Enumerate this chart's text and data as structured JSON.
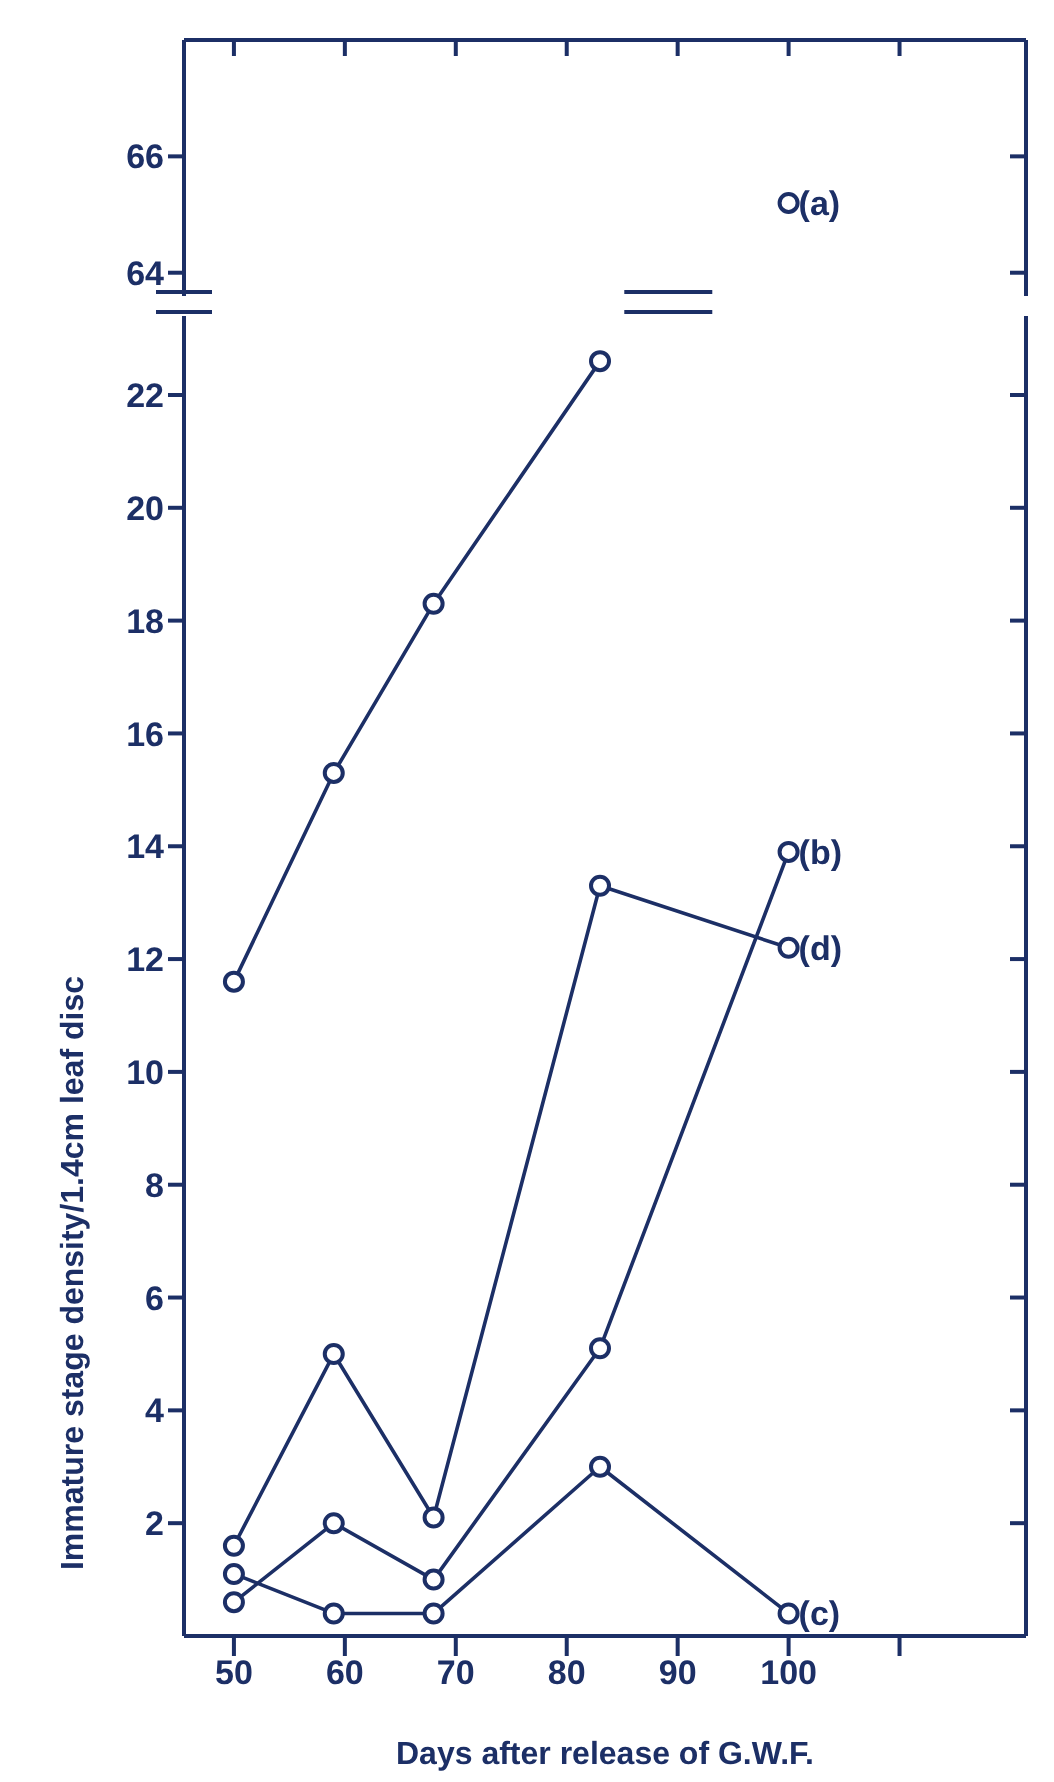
{
  "chart_data": [
    {
      "type": "line",
      "x": [
        100
      ],
      "xlim": [
        45.5,
        121.4
      ],
      "xticks": [
        50,
        60,
        70,
        80,
        90,
        100,
        {
          "value": 110,
          "label": null
        }
      ],
      "ylim": [
        63.6,
        68
      ],
      "yticks": [
        64,
        66
      ],
      "tick_labels": "y",
      "marker": "circle",
      "line_style": "solid",
      "series": [
        {
          "name": "(a)",
          "color": "#1c2f66",
          "values": [
            65.2
          ]
        }
      ]
    },
    {
      "type": "line",
      "xlabel": "Days after release of G.W.F.",
      "ylabel": "Immature stage density/1.4cm leaf disc",
      "x": [
        50,
        59,
        68,
        83,
        100
      ],
      "xlim": [
        45.5,
        121.4
      ],
      "xticks": [
        50,
        60,
        70,
        80,
        90,
        100,
        {
          "value": 110,
          "label": null
        }
      ],
      "ylim": [
        0,
        23.4
      ],
      "yticks": [
        2,
        4,
        6,
        8,
        10,
        12,
        14,
        16,
        18,
        20,
        22
      ],
      "marker": "circle",
      "line_style": "solid",
      "series": [
        {
          "color": "#1c2f66",
          "values": [
            11.6,
            15.3,
            18.3,
            22.6,
            null
          ]
        },
        {
          "name": "(b)",
          "color": "#1c2f66",
          "values": [
            0.6,
            2.0,
            1.0,
            5.1,
            13.9
          ]
        },
        {
          "name": "(c)",
          "color": "#1c2f66",
          "values": [
            1.1,
            0.4,
            0.4,
            3.0,
            0.4
          ]
        },
        {
          "name": "(d)",
          "color": "#1c2f66",
          "values": [
            1.6,
            5.0,
            2.1,
            13.3,
            12.2
          ]
        }
      ]
    }
  ]
}
